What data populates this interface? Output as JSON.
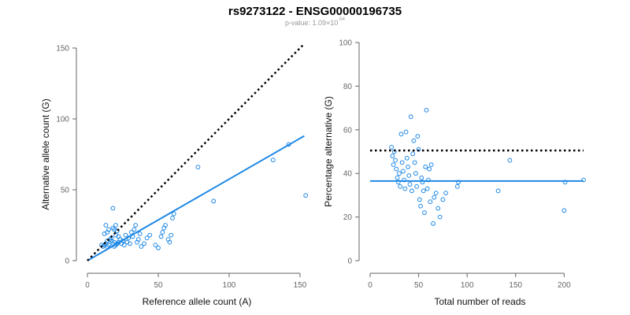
{
  "title": "rs9273122 - ENSG00000196735",
  "subtitle": {
    "text": "p-value: 1.09×10",
    "exponent": "-54"
  },
  "colors": {
    "points": "#1e88e5",
    "fit_line": "#1e88e5",
    "reference_line": "#000000",
    "axis": "#666666"
  },
  "chart_data": [
    {
      "type": "scatter",
      "xlabel": "Reference allele count (A)",
      "ylabel": "Alternative allele count (G)",
      "xlim": [
        0,
        150
      ],
      "ylim": [
        0,
        150
      ],
      "xticks": [
        0,
        50,
        100,
        150
      ],
      "yticks": [
        0,
        50,
        100,
        150
      ],
      "points": [
        [
          10,
          11
        ],
        [
          12,
          11
        ],
        [
          13,
          12
        ],
        [
          14,
          10
        ],
        [
          15,
          11
        ],
        [
          12,
          19
        ],
        [
          14,
          20
        ],
        [
          13,
          25
        ],
        [
          15,
          22
        ],
        [
          17,
          14
        ],
        [
          18,
          12
        ],
        [
          19,
          10
        ],
        [
          20,
          11
        ],
        [
          21,
          12
        ],
        [
          22,
          13
        ],
        [
          18,
          37
        ],
        [
          19,
          22
        ],
        [
          20,
          25
        ],
        [
          21,
          21
        ],
        [
          22,
          17
        ],
        [
          23,
          15
        ],
        [
          24,
          12
        ],
        [
          25,
          14
        ],
        [
          26,
          11
        ],
        [
          27,
          18
        ],
        [
          28,
          13
        ],
        [
          29,
          16
        ],
        [
          30,
          12
        ],
        [
          31,
          20
        ],
        [
          32,
          17
        ],
        [
          33,
          22
        ],
        [
          34,
          25
        ],
        [
          35,
          13
        ],
        [
          36,
          15
        ],
        [
          37,
          19
        ],
        [
          38,
          10
        ],
        [
          40,
          12
        ],
        [
          42,
          16
        ],
        [
          44,
          18
        ],
        [
          48,
          11
        ],
        [
          50,
          9
        ],
        [
          52,
          17
        ],
        [
          53,
          20
        ],
        [
          54,
          23
        ],
        [
          55,
          25
        ],
        [
          57,
          15
        ],
        [
          58,
          13
        ],
        [
          59,
          18
        ],
        [
          60,
          30
        ],
        [
          61,
          33
        ],
        [
          19,
          13
        ],
        [
          20,
          18
        ],
        [
          16,
          15
        ],
        [
          17,
          16
        ],
        [
          18,
          23
        ],
        [
          14,
          14
        ],
        [
          11,
          10
        ],
        [
          78,
          66
        ],
        [
          89,
          42
        ],
        [
          131,
          71
        ],
        [
          142,
          82
        ],
        [
          154,
          46
        ]
      ],
      "lines": [
        {
          "kind": "fit",
          "style": "solid",
          "x": [
            0,
            153
          ],
          "y": [
            0,
            88
          ]
        },
        {
          "kind": "reference",
          "style": "dotted",
          "x": [
            0,
            153
          ],
          "y": [
            0,
            153
          ]
        }
      ]
    },
    {
      "type": "scatter",
      "xlabel": "Total number of reads",
      "ylabel": "Percentage alternative (G)",
      "xlim": [
        0,
        220
      ],
      "ylim": [
        0,
        100
      ],
      "xticks": [
        0,
        50,
        100,
        150,
        200
      ],
      "yticks": [
        0,
        20,
        40,
        60,
        80,
        100
      ],
      "points": [
        [
          22,
          52
        ],
        [
          23,
          48
        ],
        [
          24,
          44
        ],
        [
          25,
          50
        ],
        [
          26,
          46
        ],
        [
          27,
          42
        ],
        [
          28,
          38
        ],
        [
          29,
          36
        ],
        [
          30,
          40
        ],
        [
          31,
          34
        ],
        [
          32,
          58
        ],
        [
          33,
          45
        ],
        [
          34,
          41
        ],
        [
          35,
          37
        ],
        [
          36,
          33
        ],
        [
          37,
          59
        ],
        [
          38,
          47
        ],
        [
          39,
          43
        ],
        [
          40,
          39
        ],
        [
          41,
          35
        ],
        [
          42,
          66
        ],
        [
          43,
          32
        ],
        [
          44,
          49
        ],
        [
          45,
          55
        ],
        [
          46,
          45
        ],
        [
          47,
          40
        ],
        [
          48,
          34
        ],
        [
          49,
          57
        ],
        [
          50,
          51
        ],
        [
          51,
          28
        ],
        [
          52,
          25
        ],
        [
          53,
          38
        ],
        [
          54,
          36
        ],
        [
          55,
          32
        ],
        [
          56,
          22
        ],
        [
          57,
          43
        ],
        [
          58,
          69
        ],
        [
          59,
          33
        ],
        [
          60,
          37
        ],
        [
          61,
          42
        ],
        [
          62,
          27
        ],
        [
          63,
          44
        ],
        [
          65,
          17
        ],
        [
          66,
          29
        ],
        [
          68,
          31
        ],
        [
          70,
          24
        ],
        [
          72,
          20
        ],
        [
          75,
          28
        ],
        [
          78,
          31
        ],
        [
          90,
          34
        ],
        [
          91,
          36
        ],
        [
          132,
          32
        ],
        [
          144,
          46
        ],
        [
          200,
          23
        ],
        [
          201,
          36
        ],
        [
          220,
          37
        ]
      ],
      "lines": [
        {
          "kind": "fit",
          "style": "solid",
          "x": [
            0,
            220
          ],
          "y": [
            36.5,
            36.5
          ]
        },
        {
          "kind": "reference",
          "style": "dotted",
          "x": [
            0,
            220
          ],
          "y": [
            50.5,
            50.5
          ]
        }
      ]
    }
  ]
}
